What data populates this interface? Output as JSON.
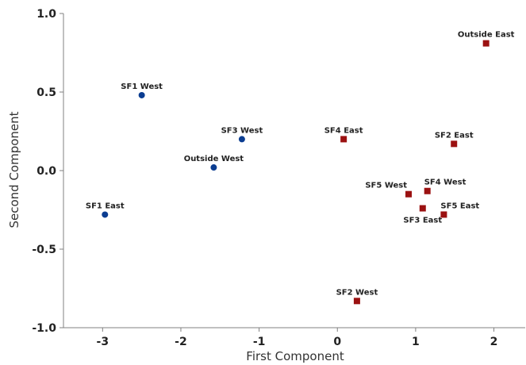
{
  "chart_data": {
    "type": "scatter",
    "xlabel": "First Component",
    "ylabel": "Second Component",
    "xlim": [
      -3.5,
      2.4
    ],
    "ylim": [
      -1.0,
      1.0
    ],
    "xticks": [
      -3,
      -2,
      -1,
      0,
      1,
      2
    ],
    "yticks": [
      -1.0,
      -0.5,
      0.0,
      0.5,
      1.0
    ],
    "xtick_labels": [
      "-3",
      "-2",
      "-1",
      "0",
      "1",
      "2"
    ],
    "ytick_labels": [
      "-1.0",
      "-0.5",
      "0.0",
      "0.5",
      "1.0"
    ],
    "grid": false,
    "series": [
      {
        "marker": "circle",
        "color": "#0b3d91",
        "points": [
          {
            "label": "SF1 West",
            "x": -2.5,
            "y": 0.48,
            "label_pos": "above"
          },
          {
            "label": "SF3 West",
            "x": -1.22,
            "y": 0.2,
            "label_pos": "above"
          },
          {
            "label": "Outside West",
            "x": -1.58,
            "y": 0.02,
            "label_pos": "above"
          },
          {
            "label": "SF1 East",
            "x": -2.97,
            "y": -0.28,
            "label_pos": "above"
          }
        ]
      },
      {
        "marker": "square",
        "color": "#9b1111",
        "points": [
          {
            "label": "Outside East",
            "x": 1.9,
            "y": 0.81,
            "label_pos": "above"
          },
          {
            "label": "SF4 East",
            "x": 0.08,
            "y": 0.2,
            "label_pos": "above"
          },
          {
            "label": "SF2 East",
            "x": 1.49,
            "y": 0.17,
            "label_pos": "above"
          },
          {
            "label": "SF5 West",
            "x": 0.91,
            "y": -0.15,
            "label_pos": "above-left"
          },
          {
            "label": "SF4 West",
            "x": 1.15,
            "y": -0.13,
            "label_pos": "above-right"
          },
          {
            "label": "SF3 East",
            "x": 1.09,
            "y": -0.24,
            "label_pos": "below"
          },
          {
            "label": "SF5 East",
            "x": 1.36,
            "y": -0.28,
            "label_pos": "above-right"
          },
          {
            "label": "SF2 West",
            "x": 0.25,
            "y": -0.83,
            "label_pos": "above"
          }
        ]
      }
    ]
  }
}
